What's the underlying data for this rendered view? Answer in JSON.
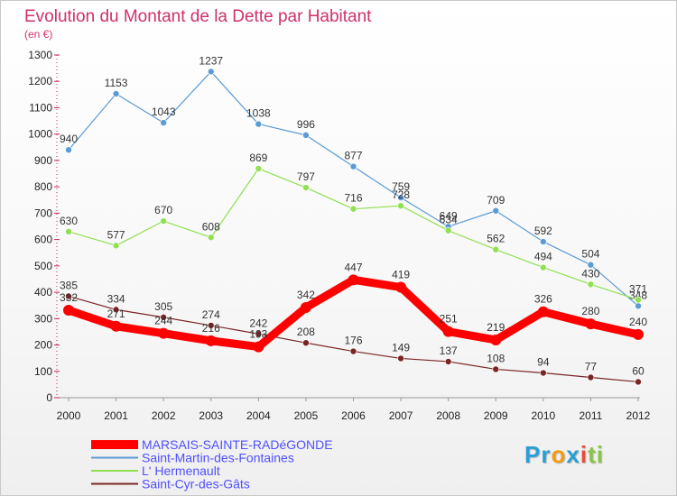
{
  "chart_data": {
    "type": "line",
    "title": "Evolution du Montant de la Dette par Habitant",
    "subtitle": "(en €)",
    "x": [
      "2000",
      "2001",
      "2002",
      "2003",
      "2004",
      "2005",
      "2006",
      "2007",
      "2008",
      "2009",
      "2010",
      "2011",
      "2012"
    ],
    "ylim": [
      0,
      1300
    ],
    "yticks": [
      0,
      100,
      200,
      300,
      400,
      500,
      600,
      700,
      800,
      900,
      1000,
      1100,
      1200,
      1300
    ],
    "grid": false,
    "legend_position": "bottom-left",
    "series": [
      {
        "name": "MARSAIS-SAINTE-RADéGONDE",
        "color": "#ff0000",
        "label_color": "#5050ff",
        "values": [
          332,
          271,
          244,
          216,
          193,
          342,
          447,
          419,
          251,
          219,
          326,
          280,
          240
        ]
      },
      {
        "name": "Saint-Martin-des-Fontaines",
        "color": "#5b9bd5",
        "label_color": "#5050ff",
        "values": [
          940,
          1153,
          1043,
          1237,
          1038,
          996,
          877,
          759,
          649,
          709,
          592,
          504,
          348
        ]
      },
      {
        "name": "L' Hermenault",
        "color": "#90e050",
        "label_color": "#5050ff",
        "values": [
          630,
          577,
          670,
          608,
          869,
          797,
          716,
          728,
          634,
          562,
          494,
          430,
          371
        ]
      },
      {
        "name": "Saint-Cyr-des-Gâts",
        "color": "#7a2525",
        "label_color": "#5050ff",
        "values": [
          385,
          334,
          305,
          274,
          242,
          208,
          176,
          149,
          137,
          108,
          94,
          77,
          60
        ]
      }
    ]
  },
  "logo": {
    "letters": [
      "P",
      "r",
      "o",
      "x",
      "i",
      "t",
      "i"
    ],
    "colors": [
      "#2a9fd6",
      "#2a9fd6",
      "#f39c12",
      "#2a9fd6",
      "#e74c3c",
      "#8bc34a",
      "#8bc34a"
    ]
  }
}
